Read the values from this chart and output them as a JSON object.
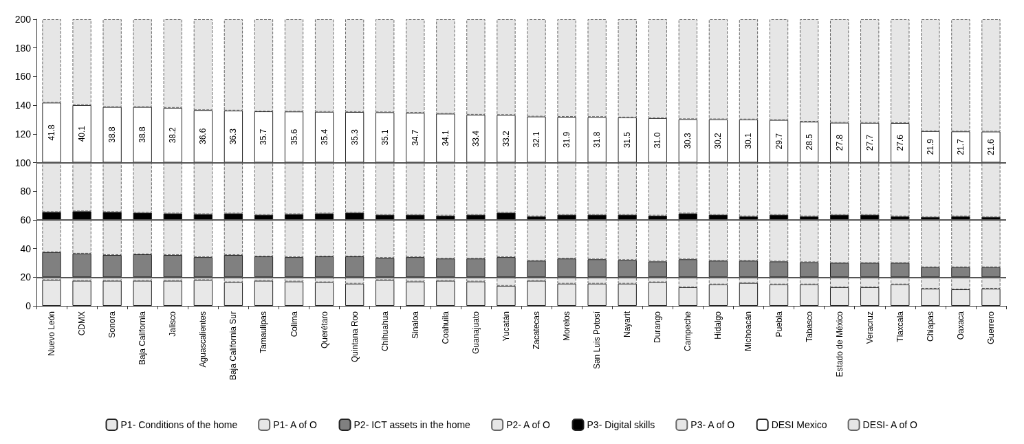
{
  "chart_data": {
    "type": "bar",
    "stacked": true,
    "legend": "bottom",
    "ylim": [
      0,
      200
    ],
    "yticks": [
      0,
      20,
      40,
      60,
      80,
      100,
      120,
      140,
      160,
      180,
      200
    ],
    "categories": [
      "Nuevo León",
      "CDMX",
      "Sonora",
      "Baja California",
      "Jalisco",
      "Aguascalientes",
      "Baja California Sur",
      "Tamaulipas",
      "Colima",
      "Querétaro",
      "Quintana Roo",
      "Chihuahua",
      "Sinaloa",
      "Coahuila",
      "Guanajuato",
      "Yucatán",
      "Zacatecas",
      "Morelos",
      "San Luis Potosí",
      "Nayarit",
      "Durango",
      "Campeche",
      "Hidalgo",
      "Michoacán",
      "Puebla",
      "Tabasco",
      "Estado de México",
      "Veracruz",
      "Tlaxcala",
      "Chiapas",
      "Oaxaca",
      "Guerrero"
    ],
    "series": [
      {
        "name": "P1- Conditions of the home",
        "color": "#e8e8e8",
        "line_style": "solid",
        "values": [
          18,
          17.5,
          17.5,
          17.5,
          17.5,
          18,
          16.5,
          17.5,
          17,
          16.5,
          15.5,
          18,
          17,
          17.5,
          17,
          14,
          17.5,
          15.5,
          15.5,
          15.5,
          16.5,
          13,
          15,
          16,
          15,
          15,
          13,
          13,
          15,
          12,
          11.5,
          12
        ]
      },
      {
        "name": "P1- A of O",
        "color": "#e6e6e6",
        "line_style": "dashed",
        "values": [
          2,
          2.5,
          2.5,
          2.5,
          2.5,
          2,
          3.5,
          2.5,
          3,
          3.5,
          4.5,
          2,
          3,
          2.5,
          3,
          6,
          2.5,
          4.5,
          4.5,
          4.5,
          3.5,
          7,
          5,
          4,
          5,
          5,
          7,
          7,
          5,
          8,
          8.5,
          8
        ]
      },
      {
        "name": "P2- ICT assets in the home",
        "color": "#808080",
        "line_style": "solid",
        "values": [
          17.5,
          16.5,
          15.5,
          16,
          15.5,
          14,
          15.5,
          14.5,
          14,
          14.5,
          14.5,
          13.5,
          14,
          13,
          13,
          14,
          11.5,
          13,
          12.5,
          12,
          11,
          12.5,
          11.5,
          11.5,
          11,
          10.5,
          10,
          10,
          10,
          7,
          7,
          7
        ]
      },
      {
        "name": "P2- A of O",
        "color": "#e6e6e6",
        "line_style": "dashed",
        "values": [
          22.5,
          23.5,
          24.5,
          24,
          24.5,
          26,
          24.5,
          25.5,
          26,
          25.5,
          25.5,
          26.5,
          26,
          27,
          27,
          26,
          28.5,
          27,
          27.5,
          28,
          29,
          27.5,
          28.5,
          28.5,
          29,
          29.5,
          30,
          30,
          30,
          33,
          33,
          33
        ]
      },
      {
        "name": "P3- Digital skills",
        "color": "#000000",
        "line_style": "solid",
        "values": [
          5.5,
          6,
          5.5,
          5,
          4.5,
          4,
          4.5,
          3.5,
          4,
          4.5,
          5,
          3.5,
          3.5,
          3,
          3.5,
          5,
          2.5,
          3.5,
          3.5,
          3.5,
          3,
          4.5,
          3.5,
          2.5,
          3.5,
          2.5,
          3.5,
          3.5,
          2.5,
          2,
          2.5,
          2
        ]
      },
      {
        "name": "P3- A of O",
        "color": "#e6e6e6",
        "line_style": "dashed",
        "values": [
          34.5,
          34,
          34.5,
          35,
          35.5,
          36,
          35.5,
          36.5,
          36,
          35.5,
          35,
          36.5,
          36.5,
          37,
          36.5,
          35,
          37.5,
          36.5,
          36.5,
          36.5,
          37,
          35.5,
          36.5,
          37.5,
          36.5,
          37.5,
          36.5,
          36.5,
          37.5,
          38,
          37.5,
          38
        ]
      },
      {
        "name": "DESI Mexico",
        "color": "#ffffff",
        "line_style": "solid",
        "values": [
          41.8,
          40.1,
          38.8,
          38.8,
          38.2,
          36.6,
          36.3,
          35.7,
          35.6,
          35.4,
          35.3,
          35.1,
          34.7,
          34.1,
          33.4,
          33.2,
          32.1,
          31.9,
          31.8,
          31.5,
          31.0,
          30.3,
          30.2,
          30.1,
          29.7,
          28.5,
          27.8,
          27.7,
          27.6,
          21.9,
          21.7,
          21.6
        ],
        "value_labels": [
          "41.8",
          "40.1",
          "38.8",
          "38.8",
          "38.2",
          "36.6",
          "36.3",
          "35.7",
          "35.6",
          "35.4",
          "35.3",
          "35.1",
          "34.7",
          "34.1",
          "33.4",
          "33.2",
          "32.1",
          "31.9",
          "31.8",
          "31.5",
          "31.0",
          "30.3",
          "30.2",
          "30.1",
          "29.7",
          "28.5",
          "27.8",
          "27.7",
          "27.6",
          "21.9",
          "21.7",
          "21.6"
        ]
      },
      {
        "name": "DESI- A of O",
        "color": "#e6e6e6",
        "line_style": "dashed",
        "values": [
          58.2,
          59.9,
          61.2,
          61.2,
          61.8,
          63.4,
          63.7,
          64.3,
          64.4,
          64.6,
          64.7,
          64.9,
          65.3,
          65.9,
          66.6,
          66.8,
          67.9,
          68.1,
          68.2,
          68.5,
          69.0,
          69.7,
          69.8,
          69.9,
          70.3,
          71.5,
          72.2,
          72.3,
          72.4,
          78.1,
          78.3,
          78.4
        ]
      }
    ],
    "ref_lines": [
      {
        "axis": "y",
        "value": 20,
        "color": "#555555"
      },
      {
        "axis": "y",
        "value": 60,
        "color": "#555555"
      },
      {
        "axis": "y",
        "value": 100,
        "color": "#555555"
      }
    ]
  }
}
